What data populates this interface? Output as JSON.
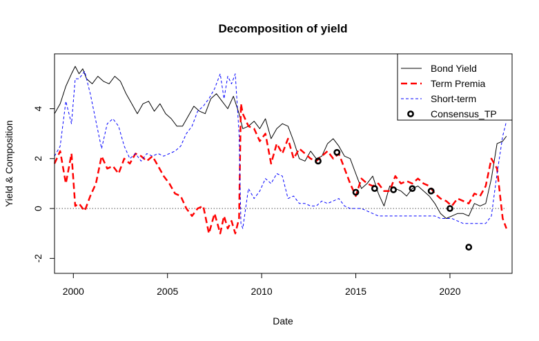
{
  "chart_data": {
    "type": "line",
    "title": "Decomposition of yield",
    "xlabel": "Date",
    "ylabel": "Yield & Composition",
    "xlim": [
      1999,
      2023.3
    ],
    "ylim": [
      -2.6,
      6.2
    ],
    "x_ticks": [
      2000,
      2005,
      2010,
      2015,
      2020
    ],
    "x_tick_labels": [
      "2000",
      "2005",
      "2010",
      "2015",
      "2020"
    ],
    "y_ticks": [
      -2,
      0,
      2,
      4
    ],
    "y_tick_labels": [
      "-2",
      "0",
      "2",
      "4"
    ],
    "grid": false,
    "legend_position": "top-right",
    "reference_line": {
      "y": 0,
      "style": "dotted",
      "color": "#000000"
    },
    "series": [
      {
        "name": "Bond Yield",
        "color": "#000000",
        "dash": "solid",
        "width": 1,
        "x": [
          1999.0,
          1999.3,
          1999.6,
          1999.9,
          2000.1,
          2000.3,
          2000.5,
          2000.7,
          2001.0,
          2001.3,
          2001.6,
          2001.9,
          2002.2,
          2002.5,
          2002.8,
          2003.1,
          2003.4,
          2003.7,
          2004.0,
          2004.3,
          2004.6,
          2004.9,
          2005.2,
          2005.5,
          2005.8,
          2006.1,
          2006.4,
          2006.7,
          2007.0,
          2007.3,
          2007.6,
          2007.9,
          2008.2,
          2008.5,
          2008.8,
          2009.0,
          2009.3,
          2009.6,
          2009.9,
          2010.2,
          2010.5,
          2010.8,
          2011.1,
          2011.4,
          2011.7,
          2012.0,
          2012.3,
          2012.6,
          2012.9,
          2013.2,
          2013.5,
          2013.8,
          2014.1,
          2014.4,
          2014.7,
          2015.0,
          2015.3,
          2015.6,
          2015.9,
          2016.2,
          2016.5,
          2016.8,
          2017.1,
          2017.4,
          2017.7,
          2018.0,
          2018.3,
          2018.6,
          2018.9,
          2019.2,
          2019.5,
          2019.8,
          2020.1,
          2020.4,
          2020.7,
          2021.0,
          2021.3,
          2021.6,
          2021.9,
          2022.2,
          2022.5,
          2022.8,
          2023.0
        ],
        "y": [
          3.8,
          4.2,
          4.9,
          5.4,
          5.7,
          5.4,
          5.6,
          5.2,
          5.0,
          5.3,
          5.1,
          5.0,
          5.3,
          5.1,
          4.6,
          4.2,
          3.8,
          4.2,
          4.3,
          3.9,
          4.2,
          3.8,
          3.6,
          3.3,
          3.3,
          3.7,
          4.1,
          3.9,
          3.8,
          4.4,
          4.6,
          4.3,
          4.0,
          4.5,
          3.8,
          3.2,
          3.3,
          3.5,
          3.2,
          3.6,
          2.8,
          3.2,
          3.4,
          3.3,
          2.7,
          2.0,
          1.9,
          2.3,
          2.0,
          2.1,
          2.6,
          2.8,
          2.5,
          2.1,
          2.0,
          1.4,
          0.8,
          1.0,
          1.3,
          0.6,
          0.1,
          0.9,
          0.8,
          0.7,
          0.5,
          0.8,
          0.9,
          0.7,
          0.5,
          0.2,
          -0.2,
          -0.4,
          -0.3,
          -0.2,
          -0.2,
          -0.3,
          0.2,
          0.1,
          0.2,
          1.2,
          2.6,
          2.7,
          2.9
        ]
      },
      {
        "name": "Term Premia",
        "color": "#ff0000",
        "dash": "long-dash",
        "width": 2.5,
        "x": [
          1999.0,
          1999.3,
          1999.6,
          1999.9,
          2000.1,
          2000.3,
          2000.6,
          2000.9,
          2001.2,
          2001.5,
          2001.8,
          2002.1,
          2002.4,
          2002.7,
          2003.0,
          2003.3,
          2003.6,
          2003.9,
          2004.2,
          2004.5,
          2004.8,
          2005.1,
          2005.4,
          2005.7,
          2006.0,
          2006.3,
          2006.6,
          2006.9,
          2007.2,
          2007.5,
          2007.8,
          2008.0,
          2008.2,
          2008.4,
          2008.6,
          2008.8,
          2008.9,
          2009.0,
          2009.3,
          2009.6,
          2009.9,
          2010.2,
          2010.5,
          2010.8,
          2011.1,
          2011.4,
          2011.7,
          2012.0,
          2012.3,
          2012.6,
          2012.9,
          2013.2,
          2013.5,
          2013.8,
          2014.1,
          2014.4,
          2014.7,
          2015.0,
          2015.3,
          2015.6,
          2015.9,
          2016.2,
          2016.5,
          2016.8,
          2017.1,
          2017.4,
          2017.7,
          2018.0,
          2018.3,
          2018.6,
          2018.9,
          2019.2,
          2019.5,
          2019.8,
          2020.1,
          2020.4,
          2020.7,
          2021.0,
          2021.3,
          2021.6,
          2021.9,
          2022.2,
          2022.5,
          2022.8,
          2023.0
        ],
        "y": [
          1.8,
          2.3,
          1.0,
          2.2,
          0.1,
          0.2,
          -0.1,
          0.5,
          1.0,
          2.1,
          1.6,
          1.7,
          1.4,
          2.0,
          1.8,
          2.2,
          2.1,
          1.9,
          2.1,
          1.7,
          1.3,
          1.0,
          0.6,
          0.5,
          0.0,
          -0.3,
          0.0,
          0.1,
          -1.0,
          -0.2,
          -1.0,
          -0.3,
          -0.8,
          -0.5,
          -1.0,
          -0.4,
          4.2,
          3.8,
          3.3,
          3.2,
          2.7,
          3.0,
          1.8,
          2.6,
          2.2,
          2.8,
          2.0,
          2.4,
          2.2,
          2.0,
          1.9,
          2.1,
          2.3,
          2.0,
          2.2,
          1.6,
          1.0,
          0.5,
          1.2,
          1.0,
          0.9,
          1.0,
          0.7,
          0.7,
          1.3,
          1.0,
          1.1,
          1.0,
          1.2,
          1.0,
          0.9,
          0.6,
          0.4,
          0.3,
          0.1,
          0.4,
          0.3,
          0.2,
          0.6,
          0.5,
          0.9,
          2.0,
          1.6,
          -0.4,
          -0.8
        ]
      },
      {
        "name": "Short-term",
        "color": "#0000ff",
        "dash": "short-dash",
        "width": 1,
        "x": [
          1999.0,
          1999.3,
          1999.6,
          1999.9,
          2000.1,
          2000.3,
          2000.6,
          2000.9,
          2001.2,
          2001.5,
          2001.8,
          2002.1,
          2002.4,
          2002.7,
          2003.0,
          2003.3,
          2003.6,
          2003.9,
          2004.2,
          2004.5,
          2004.8,
          2005.1,
          2005.4,
          2005.7,
          2006.0,
          2006.3,
          2006.6,
          2006.9,
          2007.2,
          2007.5,
          2007.8,
          2008.0,
          2008.2,
          2008.4,
          2008.6,
          2008.8,
          2008.9,
          2009.0,
          2009.3,
          2009.6,
          2009.9,
          2010.2,
          2010.5,
          2010.8,
          2011.1,
          2011.4,
          2011.7,
          2012.0,
          2012.3,
          2012.6,
          2012.9,
          2013.2,
          2013.5,
          2013.8,
          2014.1,
          2014.4,
          2014.7,
          2015.0,
          2015.3,
          2015.6,
          2015.9,
          2016.2,
          2016.5,
          2016.8,
          2017.1,
          2017.4,
          2017.7,
          2018.0,
          2018.3,
          2018.6,
          2018.9,
          2019.2,
          2019.5,
          2019.8,
          2020.1,
          2020.4,
          2020.7,
          2021.0,
          2021.3,
          2021.6,
          2021.9,
          2022.2,
          2022.5,
          2022.8,
          2023.0
        ],
        "y": [
          2.1,
          2.5,
          4.3,
          3.4,
          5.2,
          5.2,
          5.5,
          4.6,
          3.5,
          2.4,
          3.4,
          3.6,
          3.3,
          2.5,
          2.0,
          2.2,
          1.9,
          2.2,
          2.1,
          2.2,
          2.1,
          2.2,
          2.3,
          2.5,
          3.0,
          3.3,
          3.9,
          4.1,
          4.4,
          4.8,
          5.4,
          4.4,
          5.3,
          5.0,
          5.4,
          3.0,
          -0.6,
          -0.8,
          0.8,
          0.4,
          0.7,
          1.2,
          1.0,
          1.4,
          1.3,
          0.4,
          0.5,
          0.2,
          0.2,
          0.1,
          0.1,
          0.3,
          0.2,
          0.3,
          0.4,
          0.1,
          0.0,
          0.0,
          0.0,
          -0.1,
          -0.2,
          -0.3,
          -0.3,
          -0.3,
          -0.3,
          -0.3,
          -0.3,
          -0.3,
          -0.3,
          -0.3,
          -0.3,
          -0.3,
          -0.4,
          -0.4,
          -0.4,
          -0.5,
          -0.6,
          -0.6,
          -0.6,
          -0.6,
          -0.6,
          -0.3,
          1.4,
          2.9,
          3.5
        ]
      },
      {
        "name": "Consensus_TP",
        "color": "#000000",
        "marker": "circle",
        "x": [
          2013,
          2014,
          2015,
          2016,
          2017,
          2018,
          2019,
          2020,
          2021
        ],
        "y": [
          1.9,
          2.25,
          0.65,
          0.8,
          0.75,
          0.8,
          0.7,
          0.0,
          -1.55
        ]
      }
    ]
  }
}
